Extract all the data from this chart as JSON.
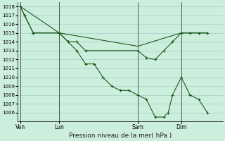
{
  "background_color": "#cceedd",
  "grid_color": "#aacccc",
  "line_color": "#1a5c1a",
  "xlabel": "Pression niveau de la mer( hPa )",
  "ylim": [
    1005,
    1018.5
  ],
  "yticks": [
    1006,
    1007,
    1008,
    1009,
    1010,
    1011,
    1012,
    1013,
    1014,
    1015,
    1016,
    1017,
    1018
  ],
  "x_labels": [
    "Ven",
    "Lun",
    "Sam",
    "Dim"
  ],
  "x_vlines": [
    0,
    4.5,
    13.5,
    18.5
  ],
  "xlim": [
    -0.3,
    23.3
  ],
  "series1_x": [
    0,
    0.5,
    1.5,
    4.5,
    5.5,
    6.5,
    7.5,
    8.5,
    9.5,
    10.5,
    11.5,
    12.5,
    13.5,
    14.5,
    15.5,
    16.5,
    17,
    17.5,
    18.5,
    19.5,
    20.5,
    21.5
  ],
  "series1_y": [
    1018,
    1017,
    1015,
    1015,
    1014,
    1013,
    1011.5,
    1011.5,
    1010,
    1009,
    1008.5,
    1008.5,
    1008,
    1007.5,
    1005.5,
    1005.5,
    1006,
    1008,
    1010,
    1008,
    1007.5,
    1006
  ],
  "series2_x": [
    0,
    0.5,
    1.5,
    4.5,
    5.5,
    6.5,
    7.5,
    13.5,
    14.5,
    15.5,
    16.5,
    17.5,
    18.5,
    19.5,
    20.5,
    21.5
  ],
  "series2_y": [
    1018,
    1017,
    1015,
    1015,
    1014,
    1014,
    1013,
    1013,
    1012.2,
    1012,
    1013,
    1014,
    1015,
    1015,
    1015,
    1015
  ],
  "series3_x": [
    0,
    4.5,
    13.5,
    18.5,
    21.5
  ],
  "series3_y": [
    1018,
    1015,
    1013.5,
    1015,
    1015
  ]
}
